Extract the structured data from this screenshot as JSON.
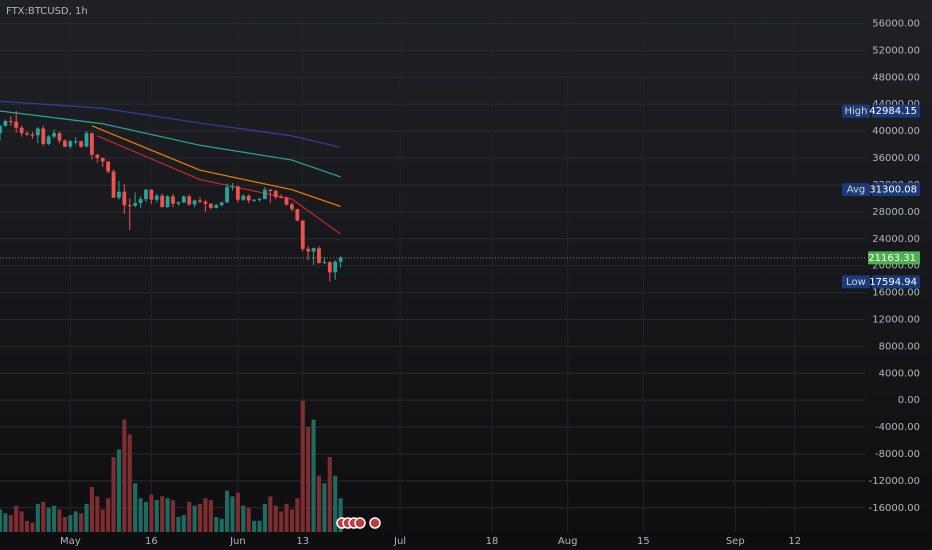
{
  "chart_data": {
    "type": "candlestick",
    "title": "FTX:BTCUSD, 1h",
    "x": [
      "04-18",
      "04-19",
      "04-20",
      "04-21",
      "04-22",
      "04-23",
      "04-24",
      "04-25",
      "04-26",
      "04-27",
      "04-28",
      "04-29",
      "04-30",
      "05-01",
      "05-02",
      "05-03",
      "05-04",
      "05-05",
      "05-06",
      "05-07",
      "05-08",
      "05-09",
      "05-10",
      "05-11",
      "05-12",
      "05-13",
      "05-14",
      "05-15",
      "05-16",
      "05-17",
      "05-18",
      "05-19",
      "05-20",
      "05-21",
      "05-22",
      "05-23",
      "05-24",
      "05-25",
      "05-26",
      "05-27",
      "05-28",
      "05-29",
      "05-30",
      "05-31",
      "06-01",
      "06-02",
      "06-03",
      "06-04",
      "06-05",
      "06-06",
      "06-07",
      "06-08",
      "06-09",
      "06-10",
      "06-11",
      "06-12",
      "06-13",
      "06-14",
      "06-15",
      "06-16",
      "06-17",
      "06-18",
      "06-19",
      "06-20"
    ],
    "open": [
      39700,
      40800,
      41500,
      41400,
      40500,
      39700,
      39500,
      39400,
      40400,
      38100,
      39200,
      39700,
      38600,
      37700,
      38500,
      38500,
      37700,
      39700,
      36500,
      36000,
      35500,
      34000,
      30100,
      31000,
      29000,
      28900,
      29300,
      29900,
      31300,
      29800,
      30400,
      28700,
      30300,
      29200,
      29400,
      30300,
      29100,
      29700,
      29500,
      29200,
      28600,
      29000,
      29400,
      31700,
      31800,
      29800,
      30400,
      29700,
      29800,
      29900,
      31300,
      31100,
      30200,
      30100,
      29100,
      28400,
      26700,
      22500,
      22100,
      22600,
      20400,
      20500,
      19000,
      20600
    ],
    "high": [
      40900,
      41700,
      42200,
      42984.15,
      40800,
      40000,
      39900,
      40600,
      40800,
      39400,
      40300,
      39900,
      38800,
      38700,
      39100,
      38600,
      40000,
      39800,
      36600,
      36100,
      35500,
      34300,
      32600,
      32100,
      30000,
      30900,
      30300,
      31400,
      31300,
      30700,
      30700,
      30500,
      30700,
      29600,
      30400,
      30600,
      29800,
      30200,
      29800,
      29300,
      29200,
      29500,
      32200,
      32300,
      31900,
      30600,
      30600,
      29900,
      30100,
      31700,
      31400,
      31300,
      30600,
      30300,
      29400,
      28500,
      26800,
      22900,
      22700,
      22900,
      21300,
      20700,
      20800,
      21400
    ],
    "low": [
      38600,
      40600,
      40800,
      39800,
      39200,
      39300,
      38900,
      38200,
      37800,
      37900,
      38900,
      38200,
      37600,
      37400,
      38000,
      37500,
      37600,
      35800,
      35300,
      34700,
      33700,
      30100,
      29800,
      27700,
      25300,
      28700,
      28600,
      29500,
      29200,
      29400,
      28700,
      28600,
      28700,
      28900,
      29300,
      28900,
      28700,
      29300,
      28000,
      28300,
      28500,
      28800,
      29300,
      31200,
      29400,
      29600,
      29300,
      29500,
      29500,
      29900,
      29300,
      29900,
      30000,
      28900,
      28100,
      26600,
      22100,
      20800,
      20100,
      20300,
      20300,
      17594.94,
      17900,
      19700
    ],
    "close": [
      40800,
      41500,
      41400,
      40500,
      39700,
      39500,
      39400,
      40400,
      38100,
      39200,
      39700,
      38600,
      37700,
      38500,
      38500,
      37700,
      39700,
      36500,
      36000,
      35500,
      34000,
      30100,
      31000,
      29000,
      28900,
      29300,
      29900,
      31300,
      29800,
      30400,
      28700,
      30300,
      29200,
      29400,
      30300,
      29100,
      29700,
      29500,
      29200,
      28600,
      29000,
      29400,
      31700,
      31800,
      29800,
      30400,
      29700,
      29800,
      29900,
      31300,
      31100,
      30200,
      30100,
      29100,
      28400,
      26700,
      22500,
      22100,
      22600,
      20400,
      20500,
      19000,
      20600,
      21163.31
    ],
    "volume": [
      60,
      50,
      45,
      70,
      55,
      30,
      25,
      75,
      80,
      65,
      70,
      60,
      40,
      45,
      55,
      50,
      75,
      120,
      95,
      60,
      90,
      200,
      220,
      300,
      260,
      130,
      90,
      80,
      100,
      85,
      95,
      90,
      85,
      40,
      45,
      80,
      70,
      75,
      90,
      85,
      40,
      35,
      110,
      95,
      105,
      70,
      65,
      30,
      30,
      75,
      95,
      70,
      55,
      75,
      60,
      90,
      350,
      280,
      300,
      150,
      130,
      200,
      150,
      90
    ],
    "volume_lim": [
      0,
      400
    ],
    "up_color": "#26a69a",
    "down_color": "#ef5350",
    "up_volume_color": "#1e6b61",
    "down_volume_color": "#7e2e30",
    "lines": [
      {
        "color": "#2f3fa6",
        "x": [
          "04-18",
          "05-07",
          "05-25",
          "06-11",
          "06-20"
        ],
        "values": [
          44450,
          43400,
          41200,
          39300,
          37600
        ]
      },
      {
        "color": "#26a69a",
        "x": [
          "04-18",
          "05-07",
          "05-25",
          "06-11",
          "06-20"
        ],
        "values": [
          43000,
          41100,
          37900,
          35700,
          33200
        ]
      },
      {
        "color": "#f57c00",
        "x": [
          "05-05",
          "05-25",
          "06-11",
          "06-20"
        ],
        "values": [
          40800,
          34200,
          31300,
          28800
        ]
      },
      {
        "color": "#c62828",
        "x": [
          "05-06",
          "05-25",
          "06-11",
          "06-20"
        ],
        "values": [
          39300,
          32800,
          29900,
          24700
        ]
      }
    ],
    "xlim": [
      "04-18",
      "09-25"
    ],
    "xticks": [
      {
        "value": "05-01",
        "label": "May"
      },
      {
        "value": "05-16",
        "label": "16"
      },
      {
        "value": "06-01",
        "label": "Jun"
      },
      {
        "value": "06-13",
        "label": "13"
      },
      {
        "value": "07-01",
        "label": "Jul"
      },
      {
        "value": "07-18",
        "label": "18"
      },
      {
        "value": "08-01",
        "label": "Aug"
      },
      {
        "value": "08-15",
        "label": "15"
      },
      {
        "value": "09-01",
        "label": "Sep"
      },
      {
        "value": "09-12",
        "label": "12"
      }
    ],
    "ylim": [
      -19600,
      59500
    ],
    "yticks": [
      {
        "value": 56000,
        "label": "56000.00"
      },
      {
        "value": 52000,
        "label": "52000.00"
      },
      {
        "value": 48000,
        "label": "48000.00"
      },
      {
        "value": 44000,
        "label": "44000.00"
      },
      {
        "value": 40000,
        "label": "40000.00"
      },
      {
        "value": 36000,
        "label": "36000.00"
      },
      {
        "value": 32000,
        "label": "32000.00"
      },
      {
        "value": 28000,
        "label": "28000.00"
      },
      {
        "value": 24000,
        "label": "24000.00"
      },
      {
        "value": 20000,
        "label": "20000.00"
      },
      {
        "value": 16000,
        "label": "16000.00"
      },
      {
        "value": 12000,
        "label": "12000.00"
      },
      {
        "value": 8000,
        "label": "8000.00"
      },
      {
        "value": 4000,
        "label": "4000.00"
      },
      {
        "value": 0,
        "label": "0.00"
      },
      {
        "value": -4000,
        "label": "-4000.00"
      },
      {
        "value": -8000,
        "label": "-8000.00"
      },
      {
        "value": -12000,
        "label": "-12000.00"
      },
      {
        "value": -16000,
        "label": "-16000.00"
      }
    ],
    "grid": true,
    "price_markers": [
      {
        "label": "High",
        "value": 42984.15,
        "color": "#1c3a78"
      },
      {
        "label": "Avg",
        "value": 31300.08,
        "color": "#1c3a78"
      },
      {
        "label": "Low",
        "value": 17594.94,
        "color": "#1c3a78"
      }
    ],
    "last_price": 21163.31,
    "last_price_color": "#4caf50"
  }
}
